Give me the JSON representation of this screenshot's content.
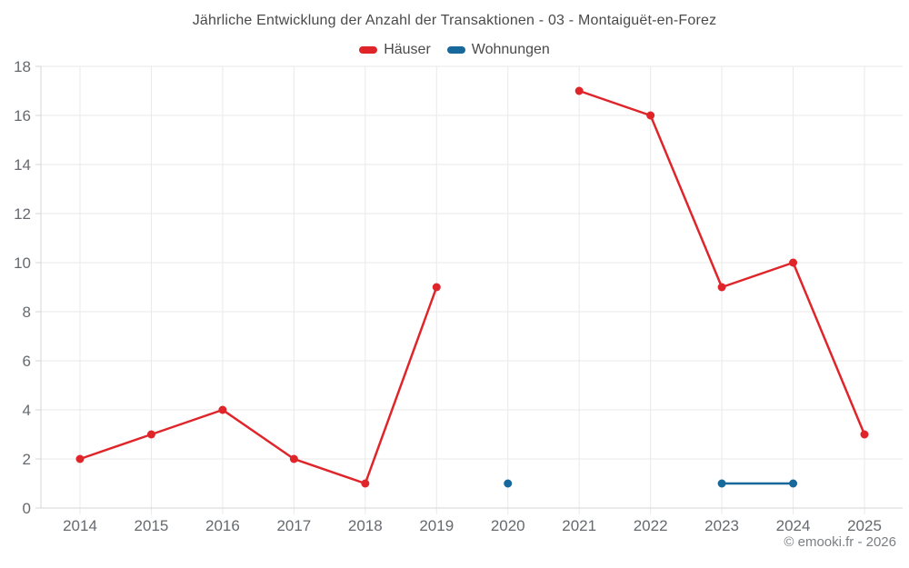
{
  "header": {
    "title": "Jährliche Entwicklung der Anzahl der Transaktionen - 03 - Montaiguët-en-Forez"
  },
  "footer": {
    "attribution": "© emooki.fr - 2026"
  },
  "colors": {
    "background": "#ffffff",
    "grid": "#e9e9e9",
    "axis": "#d6d6d6",
    "tick_text": "#666a6e",
    "title_text": "#4a4a4a",
    "attribution_text": "#7b7f83",
    "hauser_red": "#e0252a",
    "wohnungen_blue": "#17699c"
  },
  "chart_data": {
    "type": "line",
    "title": "Jährliche Entwicklung der Anzahl der Transaktionen - 03 - Montaiguët-en-Forez",
    "x": [
      "2014",
      "2015",
      "2016",
      "2017",
      "2018",
      "2019",
      "2020",
      "2021",
      "2022",
      "2023",
      "2024",
      "2025"
    ],
    "series": [
      {
        "name": "Häuser",
        "color": "#e0252a",
        "values": [
          2,
          3,
          4,
          2,
          1,
          9,
          null,
          17,
          16,
          9,
          10,
          3
        ]
      },
      {
        "name": "Wohnungen",
        "color": "#17699c",
        "values": [
          null,
          null,
          null,
          null,
          null,
          null,
          1,
          null,
          null,
          1,
          1,
          null
        ]
      }
    ],
    "xlabel": "",
    "ylabel": "",
    "ylim": [
      0,
      18
    ],
    "ytick_step": 2,
    "grid": true,
    "legend_position": "top",
    "marker_radius": 4.5,
    "line_width": 2.5
  }
}
